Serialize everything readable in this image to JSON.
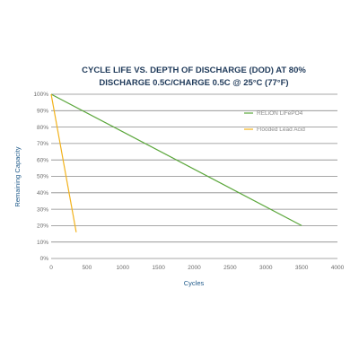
{
  "chart_data": {
    "type": "line",
    "title": "CYCLE LIFE VS. DEPTH OF DISCHARGE (DOD) AT 80%",
    "subtitle": "DISCHARGE 0.5C/CHARGE 0.5C @ 25°C (77°F)",
    "xlabel": "Cycles",
    "ylabel": "Remaining Capacity",
    "xlim": [
      0,
      4000
    ],
    "ylim": [
      0,
      100
    ],
    "x_ticks": [
      "0",
      "500",
      "1000",
      "1500",
      "2000",
      "2500",
      "3000",
      "3500",
      "4000"
    ],
    "y_ticks": [
      "0%",
      "10%",
      "20%",
      "30%",
      "40%",
      "50%",
      "60%",
      "70%",
      "80%",
      "90%",
      "100%"
    ],
    "grid": "horizontal",
    "legend_position": "top-right",
    "series": [
      {
        "name": "RELiON LiFePO4",
        "color": "#5aa63a",
        "points": [
          [
            0,
            100
          ],
          [
            3500,
            20
          ]
        ]
      },
      {
        "name": "Flooded Lead Acid",
        "color": "#f2b21c",
        "points": [
          [
            0,
            100
          ],
          [
            350,
            16
          ]
        ]
      }
    ]
  }
}
